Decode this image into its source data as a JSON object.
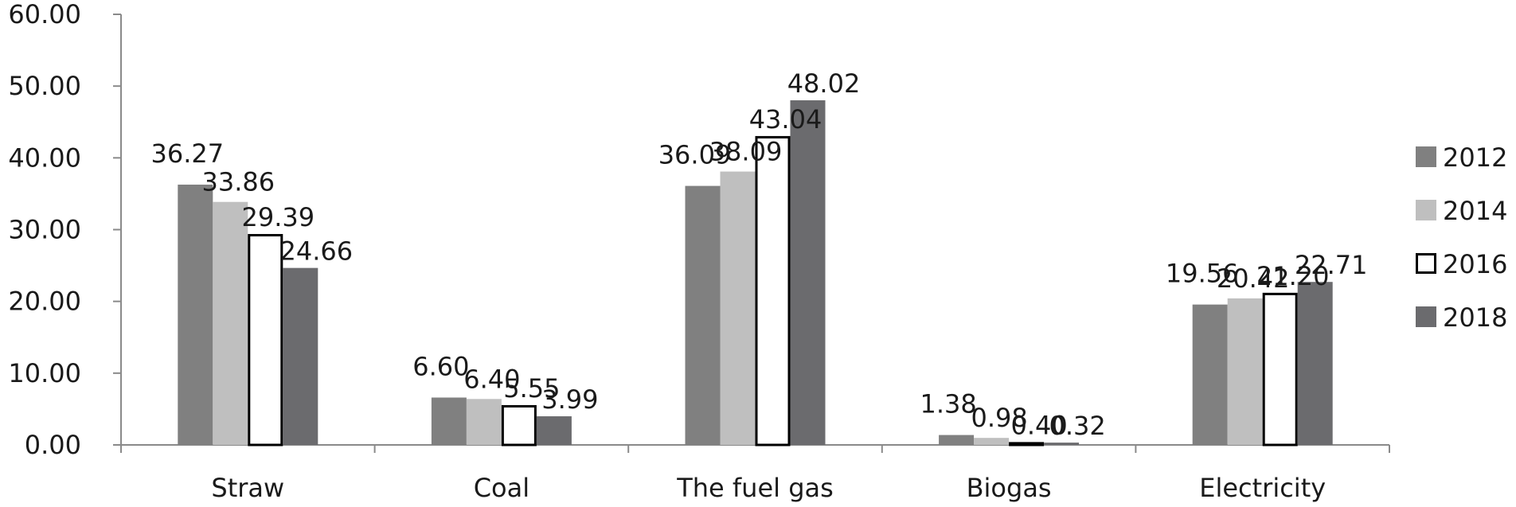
{
  "chart_data": {
    "type": "bar",
    "title": "",
    "xlabel": "",
    "ylabel": "",
    "ylim": [
      0,
      60
    ],
    "yticks": [
      "0.00",
      "10.00",
      "20.00",
      "30.00",
      "40.00",
      "50.00",
      "60.00"
    ],
    "grid": false,
    "legend_position": "right",
    "categories": [
      "Straw",
      "Coal",
      "The fuel gas",
      "Biogas",
      "Electricity"
    ],
    "series": [
      {
        "name": "2012",
        "color": "#808080",
        "outline": false,
        "values": [
          36.27,
          6.6,
          36.09,
          1.38,
          19.56
        ],
        "labels": [
          "36.27",
          "6.60",
          "36.09",
          "1.38",
          "19.56"
        ]
      },
      {
        "name": "2014",
        "color": "#bfbfbf",
        "outline": false,
        "values": [
          33.86,
          6.4,
          38.09,
          0.98,
          20.42
        ],
        "labels": [
          "33.86",
          "6.40",
          "38.09",
          "0.98",
          "20.42"
        ]
      },
      {
        "name": "2016",
        "color": "#ffffff",
        "outline": true,
        "values": [
          29.39,
          5.55,
          43.04,
          0.4,
          21.2
        ],
        "labels": [
          "29.39",
          "5.55",
          "43.04",
          "0.40",
          "21.20"
        ]
      },
      {
        "name": "2018",
        "color": "#6b6b6e",
        "outline": false,
        "values": [
          24.66,
          3.99,
          48.02,
          0.32,
          22.71
        ],
        "labels": [
          "24.66",
          "3.99",
          "48.02",
          "0.32",
          "22.71"
        ]
      }
    ]
  }
}
